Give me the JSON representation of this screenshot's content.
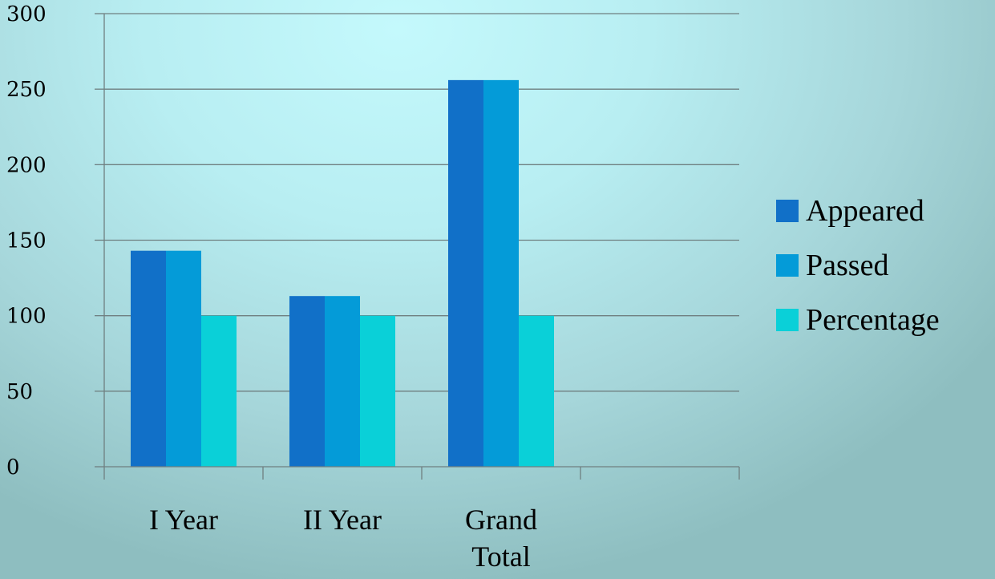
{
  "chart_data": {
    "type": "bar",
    "categories": [
      "I Year",
      "II Year",
      "Grand Total"
    ],
    "series": [
      {
        "name": "Appeared",
        "values": [
          143,
          113,
          256
        ],
        "color": "#1170c8"
      },
      {
        "name": "Passed",
        "values": [
          143,
          113,
          256
        ],
        "color": "#049bd8"
      },
      {
        "name": "Percentage",
        "values": [
          100,
          100,
          100
        ],
        "color": "#0ad0d8"
      }
    ],
    "y_ticks": [
      "0",
      "50",
      "100",
      "150",
      "200",
      "250",
      "300"
    ],
    "ylim": [
      0,
      300
    ],
    "empty_category_slots": 1,
    "grid": true,
    "legend_position": "right",
    "title": "",
    "xlabel": "",
    "ylabel": ""
  }
}
